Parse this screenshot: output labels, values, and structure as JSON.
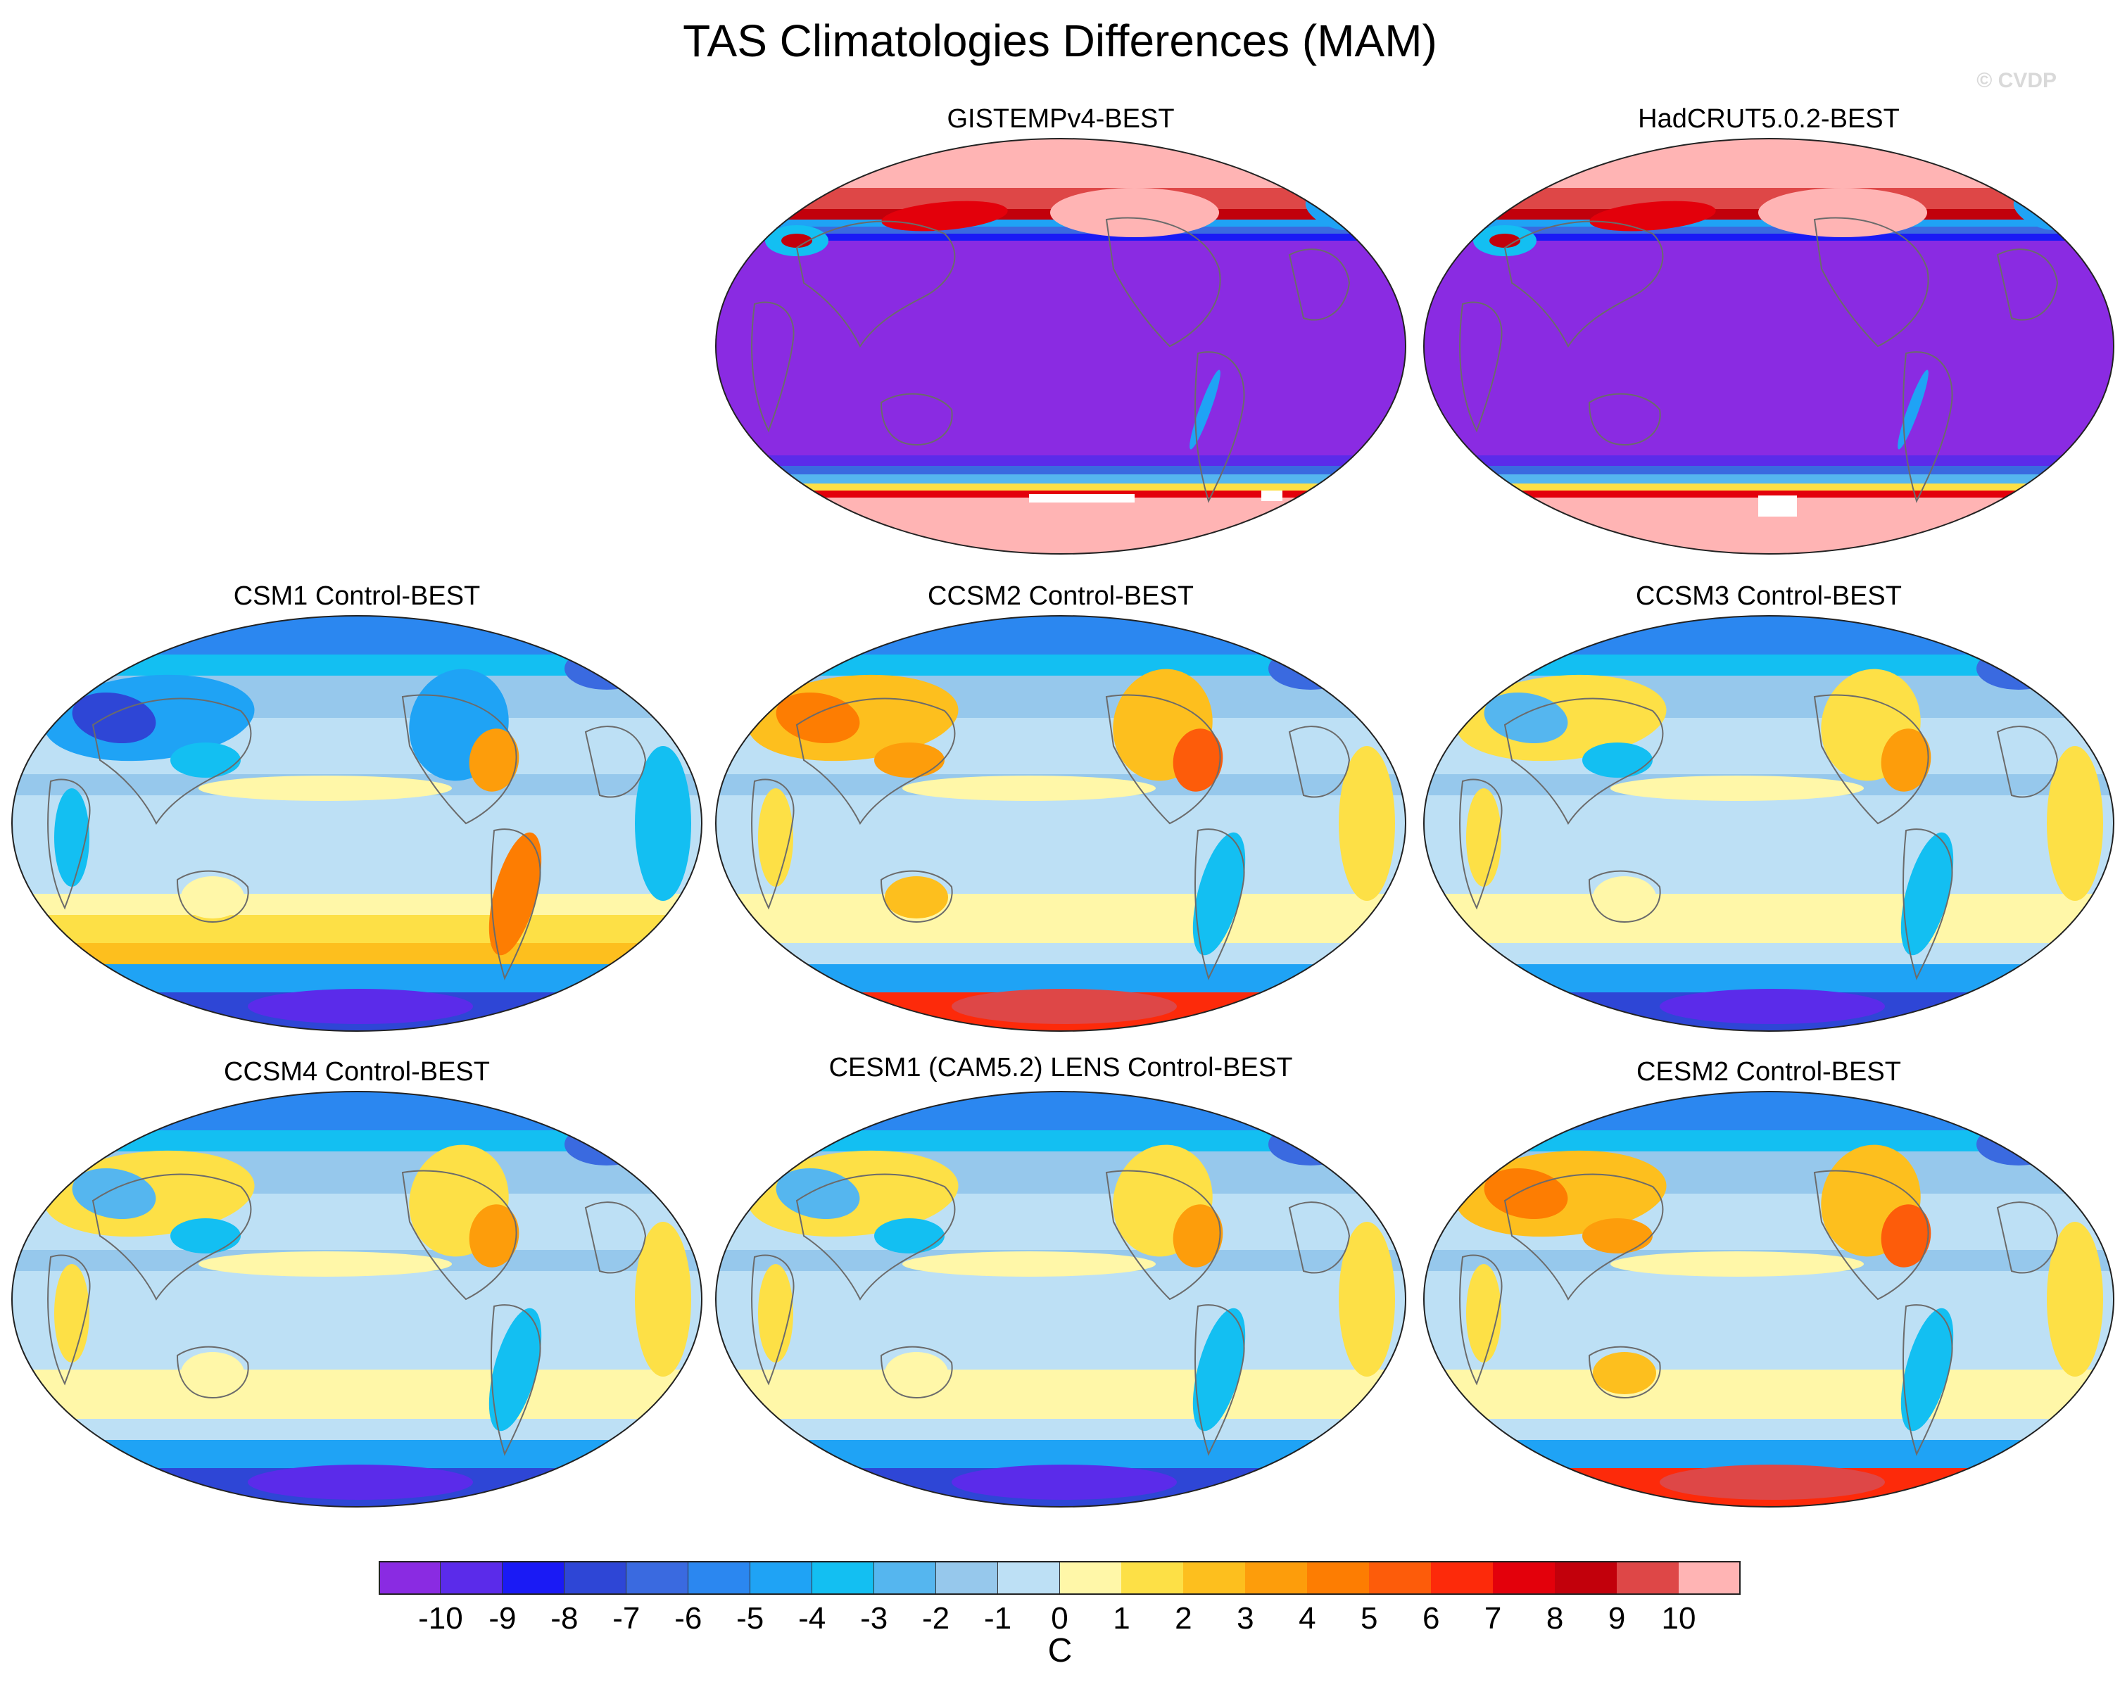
{
  "title": "TAS Climatologies Differences (MAM)",
  "watermark": "© CVDP",
  "colorbar": {
    "unit": "C",
    "ticks": [
      "-10",
      "-9",
      "-8",
      "-7",
      "-6",
      "-5",
      "-4",
      "-3",
      "-2",
      "-1",
      "0",
      "1",
      "2",
      "3",
      "4",
      "5",
      "6",
      "7",
      "8",
      "9",
      "10"
    ],
    "colors": [
      "#8a2be2",
      "#5b2bea",
      "#1a1af5",
      "#2e46d6",
      "#3a6ae0",
      "#2b87f0",
      "#1fa3f5",
      "#13bff2",
      "#55b6ef",
      "#96c8ec",
      "#bde0f5",
      "#fff7a8",
      "#fde046",
      "#fdbf1e",
      "#fd9d0b",
      "#fd7d02",
      "#fd5c0a",
      "#fd2a0a",
      "#e3000b",
      "#c2000b",
      "#de4747",
      "#ffb4b4"
    ]
  },
  "panels": [
    {
      "id": "gistemp",
      "title": "GISTEMPv4-BEST",
      "style": "obs",
      "hatch": "a"
    },
    {
      "id": "hadcrut",
      "title": "HadCRUT5.0.2-BEST",
      "style": "obs",
      "hatch": "b"
    },
    {
      "id": "csm1",
      "title": "CSM1 Control-BEST",
      "style": "cool"
    },
    {
      "id": "ccsm2",
      "title": "CCSM2 Control-BEST",
      "style": "warm"
    },
    {
      "id": "ccsm3",
      "title": "CCSM3 Control-BEST",
      "style": "mixed"
    },
    {
      "id": "ccsm4",
      "title": "CCSM4 Control-BEST",
      "style": "mixed"
    },
    {
      "id": "cesm1",
      "title": "CESM1 (CAM5.2) LENS Control-BEST",
      "style": "mixed"
    },
    {
      "id": "cesm2",
      "title": "CESM2 Control-BEST",
      "style": "warm"
    }
  ]
}
